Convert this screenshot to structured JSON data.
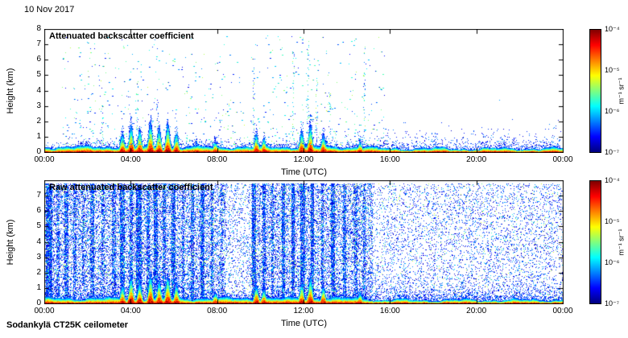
{
  "date_label": "10 Nov 2017",
  "caption": "Sodankylä CT25K ceilometer",
  "colorbar": {
    "tick_labels": [
      "10⁻⁴",
      "10⁻⁵",
      "10⁻⁶",
      "10⁻⁷"
    ],
    "unit": "m⁻¹ sr⁻¹",
    "gradient_top_to_bottom": [
      "#7f0000",
      "#ff0000",
      "#ff8000",
      "#ffff00",
      "#7fff7f",
      "#00ffff",
      "#0080ff",
      "#0000ff",
      "#00007f"
    ]
  },
  "chart_data": [
    {
      "type": "heatmap",
      "variant": "processed",
      "title": "Attenuated backscatter coefficient",
      "xlabel": "Time (UTC)",
      "ylabel": "Height (km)",
      "xlim_hours": [
        0,
        24
      ],
      "ylim_km": [
        0,
        8
      ],
      "xtick_labels": [
        "00:00",
        "04:00",
        "08:00",
        "12:00",
        "16:00",
        "20:00",
        "00:00"
      ],
      "ytick_labels": [
        "0",
        "1",
        "2",
        "3",
        "4",
        "5",
        "6",
        "7",
        "8"
      ],
      "value_range": [
        "1e-7",
        "1e-4"
      ],
      "colormap": "jet",
      "surface_layer": {
        "mean_top_km": 0.45,
        "variation_km": 0.18
      },
      "plumes": [
        {
          "time_h": 3.6,
          "top_km": 1.5
        },
        {
          "time_h": 4.0,
          "top_km": 2.2
        },
        {
          "time_h": 4.4,
          "top_km": 1.8
        },
        {
          "time_h": 4.9,
          "top_km": 2.4
        },
        {
          "time_h": 5.3,
          "top_km": 1.9
        },
        {
          "time_h": 5.7,
          "top_km": 2.3
        },
        {
          "time_h": 6.1,
          "top_km": 1.6
        },
        {
          "time_h": 7.9,
          "top_km": 0.9
        },
        {
          "time_h": 9.8,
          "top_km": 1.5
        },
        {
          "time_h": 10.15,
          "top_km": 1.2
        },
        {
          "time_h": 11.9,
          "top_km": 1.7
        },
        {
          "time_h": 12.3,
          "top_km": 2.2
        },
        {
          "time_h": 12.9,
          "top_km": 1.4
        },
        {
          "time_h": 14.6,
          "top_km": 0.9
        }
      ],
      "speckle": {
        "count": 750,
        "time_range_h": [
          0.8,
          15.8
        ],
        "max_km": 7.2
      },
      "streaks": [
        {
          "time_h": 2.7,
          "top_km": 3.0
        },
        {
          "time_h": 4.3,
          "top_km": 4.6
        },
        {
          "time_h": 5.2,
          "top_km": 3.5
        },
        {
          "time_h": 9.7,
          "top_km": 5.6
        },
        {
          "time_h": 11.5,
          "top_km": 6.6
        },
        {
          "time_h": 12.2,
          "top_km": 7.0
        },
        {
          "time_h": 12.6,
          "top_km": 5.0
        },
        {
          "time_h": 13.2,
          "top_km": 4.2
        },
        {
          "time_h": 14.8,
          "top_km": 7.0
        }
      ]
    },
    {
      "type": "heatmap",
      "variant": "raw",
      "title": "Raw attenuated backscatter coefficient",
      "xlabel": "Time (UTC)",
      "ylabel": "Height (km)",
      "xlim_hours": [
        0,
        24
      ],
      "ylim_km": [
        0,
        8
      ],
      "xtick_labels": [
        "00:00",
        "04:00",
        "08:00",
        "12:00",
        "16:00",
        "20:00",
        "00:00"
      ],
      "ytick_labels": [
        "0",
        "1",
        "2",
        "3",
        "4",
        "5",
        "6",
        "7"
      ],
      "value_range": [
        "1e-7",
        "1e-4"
      ],
      "colormap": "jet",
      "surface_layer": {
        "mean_top_km": 0.45,
        "variation_km": 0.18
      },
      "noise": {
        "density_left": 0.33,
        "density_right": 0.13,
        "transition_h": 15.2,
        "light_gap": {
          "start_h": 8.35,
          "end_h": 9.55,
          "factor": 0.45
        }
      },
      "stripes": [
        {
          "time_h": 0.2,
          "width_h": 0.3,
          "boost": 2.6
        },
        {
          "time_h": 0.6,
          "width_h": 0.15,
          "boost": 2.0
        },
        {
          "time_h": 1.0,
          "width_h": 0.2,
          "boost": 2.4
        },
        {
          "time_h": 1.4,
          "width_h": 0.12,
          "boost": 2.0
        },
        {
          "time_h": 1.8,
          "width_h": 0.1,
          "boost": 1.8
        },
        {
          "time_h": 2.2,
          "width_h": 0.18,
          "boost": 2.3
        },
        {
          "time_h": 2.7,
          "width_h": 0.12,
          "boost": 1.9
        },
        {
          "time_h": 3.2,
          "width_h": 0.16,
          "boost": 2.2
        },
        {
          "time_h": 3.6,
          "width_h": 0.2,
          "boost": 2.5
        },
        {
          "time_h": 4.0,
          "width_h": 0.15,
          "boost": 2.3
        },
        {
          "time_h": 4.35,
          "width_h": 0.25,
          "boost": 2.6
        },
        {
          "time_h": 4.8,
          "width_h": 0.15,
          "boost": 2.3
        },
        {
          "time_h": 5.15,
          "width_h": 0.2,
          "boost": 2.5
        },
        {
          "time_h": 5.55,
          "width_h": 0.15,
          "boost": 2.3
        },
        {
          "time_h": 5.95,
          "width_h": 0.18,
          "boost": 2.5
        },
        {
          "time_h": 6.4,
          "width_h": 0.12,
          "boost": 2.1
        },
        {
          "time_h": 6.85,
          "width_h": 0.15,
          "boost": 2.3
        },
        {
          "time_h": 7.3,
          "width_h": 0.2,
          "boost": 2.5
        },
        {
          "time_h": 7.75,
          "width_h": 0.12,
          "boost": 2.1
        },
        {
          "time_h": 8.2,
          "width_h": 0.1,
          "boost": 1.7
        },
        {
          "time_h": 9.7,
          "width_h": 0.2,
          "boost": 2.6
        },
        {
          "time_h": 10.15,
          "width_h": 0.15,
          "boost": 2.3
        },
        {
          "time_h": 10.55,
          "width_h": 0.12,
          "boost": 2.1
        },
        {
          "time_h": 11.05,
          "width_h": 0.18,
          "boost": 2.5
        },
        {
          "time_h": 11.5,
          "width_h": 0.15,
          "boost": 2.7
        },
        {
          "time_h": 11.95,
          "width_h": 0.2,
          "boost": 2.5
        },
        {
          "time_h": 12.4,
          "width_h": 0.15,
          "boost": 2.7
        },
        {
          "time_h": 12.85,
          "width_h": 0.12,
          "boost": 2.3
        },
        {
          "time_h": 13.35,
          "width_h": 0.18,
          "boost": 2.5
        },
        {
          "time_h": 13.9,
          "width_h": 0.15,
          "boost": 2.3
        },
        {
          "time_h": 14.4,
          "width_h": 0.12,
          "boost": 2.1
        },
        {
          "time_h": 14.8,
          "width_h": 0.1,
          "boost": 1.9
        }
      ],
      "plumes": [
        {
          "time_h": 3.6,
          "top_km": 1.5
        },
        {
          "time_h": 4.0,
          "top_km": 2.2
        },
        {
          "time_h": 4.4,
          "top_km": 1.8
        },
        {
          "time_h": 4.9,
          "top_km": 2.4
        },
        {
          "time_h": 5.3,
          "top_km": 1.9
        },
        {
          "time_h": 5.7,
          "top_km": 2.3
        },
        {
          "time_h": 6.1,
          "top_km": 1.6
        },
        {
          "time_h": 7.9,
          "top_km": 0.9
        },
        {
          "time_h": 9.8,
          "top_km": 1.5
        },
        {
          "time_h": 10.15,
          "top_km": 1.2
        },
        {
          "time_h": 11.9,
          "top_km": 1.7
        },
        {
          "time_h": 12.3,
          "top_km": 2.2
        },
        {
          "time_h": 12.9,
          "top_km": 1.4
        },
        {
          "time_h": 14.6,
          "top_km": 0.9
        }
      ]
    }
  ]
}
